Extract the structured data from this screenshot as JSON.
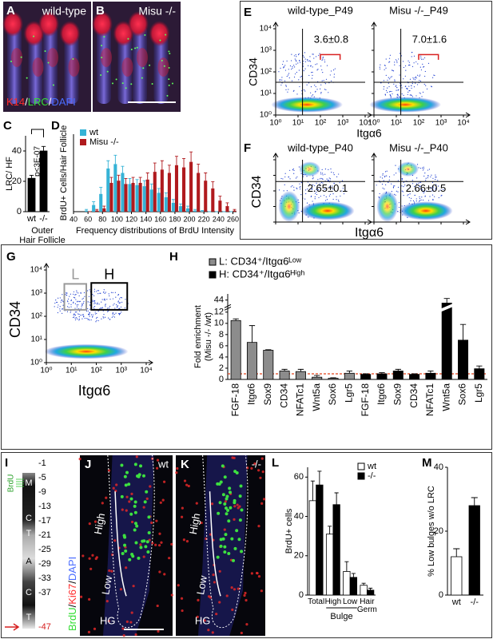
{
  "images": {
    "A": {
      "label": "A",
      "caption": "wild-type"
    },
    "B": {
      "label": "B",
      "caption": "Misu -/-"
    },
    "stain_AB": [
      {
        "text": "K14",
        "color": "#ff2a2a"
      },
      {
        "text": "/",
        "color": "#ffffff"
      },
      {
        "text": "LRC",
        "color": "#33dd33"
      },
      {
        "text": "/",
        "color": "#ffffff"
      },
      {
        "text": "DAPI",
        "color": "#4a6cff"
      }
    ],
    "J": {
      "label": "J",
      "caption": "wt",
      "regions": [
        "High",
        "Low",
        "HG"
      ]
    },
    "K": {
      "label": "K",
      "caption": "-/-",
      "regions": [
        "High",
        "Low",
        "HG"
      ]
    },
    "stain_JK": [
      {
        "text": "BrdU",
        "color": "#33dd33"
      },
      {
        "text": "/",
        "color": "#ffffff"
      },
      {
        "text": "Ki67",
        "color": "#ff2a2a"
      },
      {
        "text": "/",
        "color": "#ffffff"
      },
      {
        "text": "DAPI",
        "color": "#4a6cff"
      }
    ]
  },
  "ladder": {
    "label": "I",
    "stages": [
      "M",
      "C",
      "T",
      "A",
      "C",
      "T"
    ],
    "marker": "BrdU",
    "positions": [
      -1,
      -5,
      -9,
      -13,
      -17,
      -21,
      -25,
      -29,
      -33,
      -37,
      -47
    ]
  },
  "flow": {
    "xlabel": "Itgα6",
    "ylabel": "CD34",
    "log": true,
    "lim": [
      1,
      10000
    ],
    "ticks": [
      {
        "value": 1,
        "label": "10⁰"
      },
      {
        "value": 10,
        "label": "10¹"
      },
      {
        "value": 100,
        "label": "10²"
      },
      {
        "value": 1000,
        "label": "10³"
      },
      {
        "value": 10000,
        "label": "10⁴"
      }
    ],
    "panels": [
      {
        "label": "E",
        "plots": [
          {
            "title": "wild-type_P49",
            "stat": "3.6±0.8"
          },
          {
            "title": "Misu -/-_P49",
            "stat": "7.0±1.6"
          }
        ]
      },
      {
        "label": "F",
        "plots": [
          {
            "title": "wild-type_P40",
            "stat": "2.65±0.1"
          },
          {
            "title": "Misu -/-_P40",
            "stat": "2.66±0.5"
          }
        ]
      },
      {
        "label": "G",
        "gates": [
          "L",
          "H"
        ]
      }
    ]
  },
  "chart_data": [
    {
      "type": "bar",
      "label": "C",
      "ylabel": "LRC/ HF",
      "categories": [
        "wt",
        "-/-"
      ],
      "values": [
        22,
        40
      ],
      "errors": [
        2,
        3
      ],
      "color": "#000000",
      "ylim": [
        0,
        50
      ],
      "yticks": [
        0,
        20,
        40
      ],
      "annotation": "p<3E-07",
      "xlabel": [
        "Outer",
        "Hair Follicle"
      ]
    },
    {
      "type": "bar",
      "label": "D",
      "ylabel": "BrdU+ Cells/Hair Follicle",
      "xlabel": "Frequency distributions of BrdU Intensity",
      "x": [
        60,
        70,
        80,
        90,
        100,
        110,
        120,
        130,
        140,
        150,
        160,
        170,
        180,
        190,
        200,
        210,
        220,
        230,
        240,
        250,
        260
      ],
      "xlim": [
        40,
        265
      ],
      "xticks": [
        40,
        60,
        80,
        100,
        120,
        140,
        160,
        180,
        200,
        220,
        240,
        260
      ],
      "ylim": [
        0,
        7
      ],
      "legend": "top-left",
      "series": [
        {
          "name": "wt",
          "color": "#35b3d6",
          "values": [
            0.1,
            0.6,
            1.6,
            3.9,
            4.3,
            3.5,
            2.5,
            2.4,
            2.3,
            2.0,
            1.7,
            1.3,
            0.8,
            0.5,
            0.3,
            0.1,
            0.05,
            0,
            0,
            0,
            0
          ],
          "errors": [
            0.1,
            0.3,
            0.6,
            0.7,
            0.8,
            0.6,
            0.5,
            0.5,
            0.5,
            0.5,
            0.4,
            0.4,
            0.3,
            0.2,
            0.2,
            0.1,
            0.05,
            0,
            0,
            0,
            0
          ]
        },
        {
          "name": "Misu -/-",
          "color": "#b01a1e",
          "values": [
            0,
            0.1,
            0.3,
            2.6,
            2.8,
            2.5,
            2.6,
            2.6,
            2.9,
            3.6,
            3.8,
            3.5,
            4.2,
            4.0,
            4.5,
            3.5,
            2.8,
            2.1,
            1.0,
            0.5,
            0.1
          ],
          "errors": [
            0,
            0.1,
            0.2,
            0.5,
            0.5,
            0.5,
            0.5,
            0.5,
            0.6,
            0.8,
            0.8,
            0.7,
            0.8,
            0.8,
            0.9,
            0.8,
            0.7,
            0.6,
            0.4,
            0.3,
            0.1
          ]
        }
      ]
    },
    {
      "type": "bar",
      "label": "H",
      "ylabel": [
        "Fold enrichment",
        "(Misu -/- /wt)"
      ],
      "categories": [
        "FGF-18",
        "Itgα6",
        "Sox9",
        "CD34",
        "NFATc1",
        "Wnt5a",
        "Sox6",
        "Lgr5",
        "FGF-18",
        "Itgα6",
        "Sox9",
        "CD34",
        "NFATc1",
        "Wnt5a",
        "Sox6",
        "Lgr5"
      ],
      "ylim": [
        0,
        46
      ],
      "yticks": [
        0,
        2,
        4,
        6,
        8,
        10,
        12,
        44
      ],
      "y_break": [
        12.5,
        42
      ],
      "reference_line": 1,
      "reference_color": "#e2451c",
      "legend": "top-left",
      "series": [
        {
          "name": "L: CD34⁺/Itgα6ᴸᵒʷ",
          "color": "#8c8c8c",
          "values": [
            10.5,
            6.6,
            5.2,
            1.5,
            1.4,
            0.4,
            0.2,
            1.1,
            null,
            null,
            null,
            null,
            null,
            null,
            null,
            null
          ],
          "errors": [
            0.3,
            3.0,
            0.1,
            0.3,
            0.4,
            0.3,
            0.1,
            0.4,
            null,
            null,
            null,
            null,
            null,
            null,
            null,
            null
          ]
        },
        {
          "name": "H: CD34⁺/Itgα6ᴴⁱᵍʰ",
          "color": "#000000",
          "values": [
            null,
            null,
            null,
            null,
            null,
            null,
            null,
            null,
            0.9,
            1.0,
            1.5,
            0.9,
            1.1,
            43,
            7.0,
            1.9
          ],
          "errors": [
            null,
            null,
            null,
            null,
            null,
            null,
            null,
            null,
            0.1,
            0.2,
            0.3,
            0.1,
            0.4,
            1.5,
            2.8,
            0.5
          ]
        }
      ]
    },
    {
      "type": "bar",
      "label": "L",
      "ylabel": "BrdU+ cells",
      "categories": [
        "Total",
        "High",
        "Low",
        "Hair Germ"
      ],
      "group_label": "Bulge",
      "ylim": [
        0,
        65
      ],
      "yticks": [
        0,
        20,
        40,
        60
      ],
      "legend": "top-right",
      "series": [
        {
          "name": "wt",
          "color": "#ffffff",
          "values": [
            48,
            31,
            12,
            5
          ],
          "errors": [
            10,
            4,
            5,
            1
          ]
        },
        {
          "name": "-/-",
          "color": "#000000",
          "values": [
            56,
            46,
            9,
            2.5
          ],
          "errors": [
            7,
            6,
            2,
            1
          ]
        }
      ]
    },
    {
      "type": "bar",
      "label": "M",
      "ylabel": "% Low bulges w/o LRC",
      "categories": [
        "wt",
        "-/-"
      ],
      "values": [
        12,
        28
      ],
      "errors": [
        2.5,
        2.5
      ],
      "colors": [
        "#ffffff",
        "#000000"
      ],
      "ylim": [
        0,
        40
      ],
      "yticks": [
        0,
        20,
        40
      ]
    }
  ]
}
